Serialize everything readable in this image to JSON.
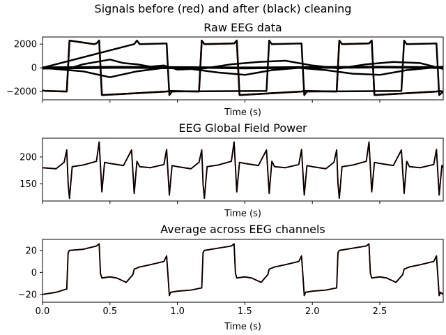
{
  "figure": {
    "suptitle": "Signals before (red) and after (black) cleaning"
  },
  "chart_data": [
    {
      "type": "line",
      "title": "Raw EEG data",
      "xlabel": "Time (s)",
      "ylabel": "",
      "xlim": [
        0,
        2.97
      ],
      "ylim": [
        -2700,
        2600
      ],
      "yticks": [
        -2000,
        0,
        2000
      ],
      "ytick_labels": [
        "−2000",
        "0",
        "2000"
      ],
      "xticks": [
        0,
        0.5,
        1.0,
        1.5,
        2.0,
        2.5
      ],
      "xtick_labels": [],
      "grid": false,
      "series": [
        {
          "color": "#ff0000",
          "x": [
            0,
            0.02,
            0.18,
            0.2,
            0.38,
            0.4,
            0.42,
            0.44,
            0.92,
            0.94,
            1.16,
            1.18,
            1.2,
            1.42,
            1.44,
            1.46,
            1.92,
            1.94,
            2.18,
            2.2,
            2.22,
            2.42,
            2.44,
            2.46,
            2.92,
            2.94,
            2.97
          ],
          "y": [
            -1900,
            -1950,
            -2000,
            2300,
            2000,
            2050,
            2300,
            -2300,
            -2000,
            -1950,
            -2000,
            2300,
            2000,
            2050,
            2300,
            -2300,
            -2000,
            -1950,
            -2000,
            2300,
            2000,
            2050,
            2300,
            -2300,
            -2000,
            -1950,
            -2000
          ]
        },
        {
          "color": "#000000",
          "x": [
            0,
            0.02,
            0.18,
            0.2,
            0.38,
            0.4,
            0.42,
            0.44,
            0.92,
            0.94,
            1.16,
            1.18,
            1.2,
            1.42,
            1.44,
            1.46,
            1.92,
            1.94,
            2.18,
            2.2,
            2.22,
            2.42,
            2.44,
            2.46,
            2.92,
            2.94,
            2.97
          ],
          "y": [
            -1900,
            -1950,
            -2000,
            2300,
            2000,
            2050,
            2300,
            -2300,
            -2000,
            -1950,
            -2000,
            2300,
            2000,
            2050,
            2300,
            -2300,
            -2000,
            -1950,
            -2000,
            2300,
            2000,
            2050,
            2300,
            -2300,
            -2000,
            -1950,
            -2000
          ]
        },
        {
          "color": "#000000",
          "x": [
            0,
            0.02,
            0.68,
            0.7,
            0.72,
            0.92,
            0.94,
            0.96,
            1.66,
            1.68,
            1.7,
            1.92,
            1.94,
            1.96,
            2.66,
            2.68,
            2.7,
            2.92,
            2.94,
            2.97
          ],
          "y": [
            0,
            60,
            2000,
            2300,
            2000,
            2050,
            -2300,
            -2000,
            -1950,
            2300,
            2000,
            2050,
            -2300,
            -2000,
            -1950,
            2300,
            2000,
            2050,
            -2300,
            -2000
          ]
        },
        {
          "color": "#000000",
          "x": [
            0,
            0.2,
            0.3,
            0.4,
            0.5,
            0.6,
            0.7,
            0.8,
            0.9,
            1.0,
            1.2,
            1.4,
            1.6,
            1.8,
            2.0,
            2.2,
            2.4,
            2.6,
            2.8,
            2.97
          ],
          "y": [
            -50,
            -50,
            300,
            500,
            700,
            400,
            300,
            100,
            200,
            -150,
            -50,
            300,
            500,
            600,
            200,
            -50,
            300,
            500,
            400,
            -100
          ]
        },
        {
          "color": "#000000",
          "x": [
            0,
            0.3,
            0.5,
            0.7,
            0.9,
            1.1,
            1.3,
            1.5,
            1.7,
            1.9,
            2.1,
            2.3,
            2.5,
            2.7,
            2.97
          ],
          "y": [
            0,
            -300,
            -800,
            -300,
            0,
            -100,
            -400,
            -600,
            -200,
            0,
            -200,
            -500,
            -600,
            -200,
            100
          ]
        },
        {
          "color": "#000000",
          "x": [
            0,
            0.5,
            1.0,
            1.5,
            2.0,
            2.5,
            2.97
          ],
          "y": [
            -60,
            -10,
            30,
            -50,
            10,
            40,
            -20
          ]
        },
        {
          "color": "#000000",
          "x": [
            0,
            0.5,
            1.0,
            1.5,
            2.0,
            2.5,
            2.97
          ],
          "y": [
            40,
            80,
            60,
            20,
            70,
            90,
            50
          ]
        },
        {
          "color": "#000000",
          "x": [
            0,
            0.5,
            1.0,
            1.5,
            2.0,
            2.5,
            2.97
          ],
          "y": [
            -20,
            10,
            -40,
            30,
            -10,
            20,
            0
          ]
        }
      ]
    },
    {
      "type": "line",
      "title": "EEG Global Field Power",
      "xlabel": "Time (s)",
      "ylabel": "",
      "xlim": [
        0,
        2.97
      ],
      "ylim": [
        118,
        235
      ],
      "yticks": [
        150,
        200
      ],
      "ytick_labels": [
        "150",
        "200"
      ],
      "xticks": [
        0,
        0.5,
        1.0,
        1.5,
        2.0,
        2.5
      ],
      "xtick_labels": [],
      "grid": false,
      "series": [
        {
          "color": "#ff0000",
          "x": [
            0,
            0.1,
            0.16,
            0.18,
            0.19,
            0.2,
            0.22,
            0.3,
            0.4,
            0.42,
            0.44,
            0.46,
            0.5,
            0.6,
            0.66,
            0.68,
            0.7,
            0.72,
            0.8,
            0.9,
            0.92,
            0.94,
            0.96,
            1.0,
            1.1,
            1.16,
            1.18,
            1.19,
            1.2,
            1.22,
            1.3,
            1.4,
            1.42,
            1.44,
            1.46,
            1.5,
            1.6,
            1.66,
            1.68,
            1.7,
            1.72,
            1.8,
            1.9,
            1.92,
            1.94,
            1.96,
            2.0,
            2.1,
            2.16,
            2.18,
            2.19,
            2.2,
            2.22,
            2.3,
            2.4,
            2.42,
            2.44,
            2.46,
            2.5,
            2.6,
            2.66,
            2.68,
            2.7,
            2.72,
            2.8,
            2.9,
            2.92,
            2.94,
            2.96,
            2.97
          ],
          "y": [
            180,
            178,
            190,
            213,
            150,
            123,
            182,
            185,
            192,
            228,
            135,
            190,
            188,
            184,
            213,
            132,
            192,
            182,
            180,
            186,
            214,
            129,
            184,
            182,
            178,
            190,
            213,
            150,
            123,
            182,
            185,
            192,
            228,
            135,
            190,
            188,
            184,
            213,
            132,
            192,
            182,
            180,
            186,
            214,
            129,
            184,
            182,
            178,
            190,
            213,
            150,
            123,
            182,
            185,
            192,
            228,
            135,
            190,
            188,
            184,
            213,
            132,
            192,
            182,
            180,
            186,
            214,
            129,
            184,
            180
          ]
        },
        {
          "color": "#000000",
          "x": [
            0,
            0.1,
            0.16,
            0.18,
            0.19,
            0.2,
            0.22,
            0.3,
            0.4,
            0.42,
            0.44,
            0.46,
            0.5,
            0.6,
            0.66,
            0.68,
            0.7,
            0.72,
            0.8,
            0.9,
            0.92,
            0.94,
            0.96,
            1.0,
            1.1,
            1.16,
            1.18,
            1.19,
            1.2,
            1.22,
            1.3,
            1.4,
            1.42,
            1.44,
            1.46,
            1.5,
            1.6,
            1.66,
            1.68,
            1.7,
            1.72,
            1.8,
            1.9,
            1.92,
            1.94,
            1.96,
            2.0,
            2.1,
            2.16,
            2.18,
            2.19,
            2.2,
            2.22,
            2.3,
            2.4,
            2.42,
            2.44,
            2.46,
            2.5,
            2.6,
            2.66,
            2.68,
            2.7,
            2.72,
            2.8,
            2.9,
            2.92,
            2.94,
            2.96,
            2.97
          ],
          "y": [
            180,
            178,
            190,
            213,
            150,
            123,
            182,
            185,
            192,
            228,
            135,
            190,
            188,
            184,
            213,
            132,
            192,
            182,
            180,
            186,
            214,
            129,
            184,
            182,
            178,
            190,
            213,
            150,
            123,
            182,
            185,
            192,
            228,
            135,
            190,
            188,
            184,
            213,
            132,
            192,
            182,
            180,
            186,
            214,
            129,
            184,
            182,
            178,
            190,
            213,
            150,
            123,
            182,
            185,
            192,
            228,
            135,
            190,
            188,
            184,
            213,
            132,
            192,
            182,
            180,
            186,
            214,
            129,
            184,
            180
          ]
        }
      ]
    },
    {
      "type": "line",
      "title": "Average across EEG channels",
      "xlabel": "Time (s)",
      "ylabel": "",
      "xlim": [
        0,
        2.97
      ],
      "ylim": [
        -27,
        30
      ],
      "yticks": [
        -20,
        0,
        20
      ],
      "ytick_labels": [
        "−20",
        "0",
        "20"
      ],
      "xticks": [
        0,
        0.5,
        1.0,
        1.5,
        2.0,
        2.5
      ],
      "xtick_labels": [
        "0.0",
        "0.5",
        "1.0",
        "1.5",
        "2.0",
        "2.5"
      ],
      "grid": false,
      "series": [
        {
          "color": "#ff0000",
          "x": [
            0,
            0.1,
            0.18,
            0.19,
            0.2,
            0.3,
            0.4,
            0.42,
            0.43,
            0.44,
            0.5,
            0.55,
            0.62,
            0.67,
            0.68,
            0.7,
            0.72,
            0.8,
            0.9,
            0.92,
            0.93,
            0.94,
            0.95,
            1.0,
            1.1,
            1.18,
            1.19,
            1.2,
            1.3,
            1.4,
            1.42,
            1.43,
            1.44,
            1.5,
            1.55,
            1.62,
            1.67,
            1.68,
            1.7,
            1.72,
            1.8,
            1.9,
            1.92,
            1.93,
            1.94,
            1.95,
            2.0,
            2.1,
            2.18,
            2.19,
            2.2,
            2.3,
            2.4,
            2.42,
            2.43,
            2.44,
            2.5,
            2.55,
            2.62,
            2.67,
            2.68,
            2.7,
            2.72,
            2.8,
            2.9,
            2.92,
            2.93,
            2.94,
            2.95,
            2.97
          ],
          "y": [
            -20,
            -18,
            -15,
            18,
            20,
            21,
            24,
            26,
            -1,
            -5,
            -4,
            -5,
            -9,
            -2,
            3,
            4,
            5,
            7,
            10,
            15,
            -3,
            -21,
            -18,
            -17,
            -16,
            -14,
            18,
            20,
            22,
            24,
            26,
            -1,
            -5,
            -4,
            -5,
            -9,
            -2,
            3,
            4,
            5,
            7,
            10,
            15,
            -3,
            -21,
            -18,
            -17,
            -16,
            -14,
            18,
            20,
            22,
            24,
            26,
            -1,
            -5,
            -4,
            -5,
            -9,
            -2,
            3,
            4,
            5,
            7,
            10,
            15,
            -3,
            -21,
            -18,
            -20
          ]
        },
        {
          "color": "#000000",
          "x": [
            0,
            0.1,
            0.18,
            0.19,
            0.2,
            0.3,
            0.4,
            0.42,
            0.43,
            0.44,
            0.5,
            0.55,
            0.62,
            0.67,
            0.68,
            0.7,
            0.72,
            0.8,
            0.9,
            0.92,
            0.93,
            0.94,
            0.95,
            1.0,
            1.1,
            1.18,
            1.19,
            1.2,
            1.3,
            1.4,
            1.42,
            1.43,
            1.44,
            1.5,
            1.55,
            1.62,
            1.67,
            1.68,
            1.7,
            1.72,
            1.8,
            1.9,
            1.92,
            1.93,
            1.94,
            1.95,
            2.0,
            2.1,
            2.18,
            2.19,
            2.2,
            2.3,
            2.4,
            2.42,
            2.43,
            2.44,
            2.5,
            2.55,
            2.62,
            2.67,
            2.68,
            2.7,
            2.72,
            2.8,
            2.9,
            2.92,
            2.93,
            2.94,
            2.95,
            2.97
          ],
          "y": [
            -20,
            -18,
            -15,
            18,
            20,
            21,
            24,
            26,
            -1,
            -5,
            -4,
            -5,
            -9,
            -2,
            3,
            4,
            5,
            7,
            10,
            15,
            -3,
            -21,
            -18,
            -17,
            -16,
            -14,
            18,
            20,
            22,
            24,
            26,
            -1,
            -5,
            -4,
            -5,
            -9,
            -2,
            3,
            4,
            5,
            7,
            10,
            15,
            -3,
            -21,
            -18,
            -17,
            -16,
            -14,
            18,
            20,
            22,
            24,
            26,
            -1,
            -5,
            -4,
            -5,
            -9,
            -2,
            3,
            4,
            5,
            7,
            10,
            15,
            -3,
            -21,
            -18,
            -20
          ]
        }
      ]
    }
  ]
}
